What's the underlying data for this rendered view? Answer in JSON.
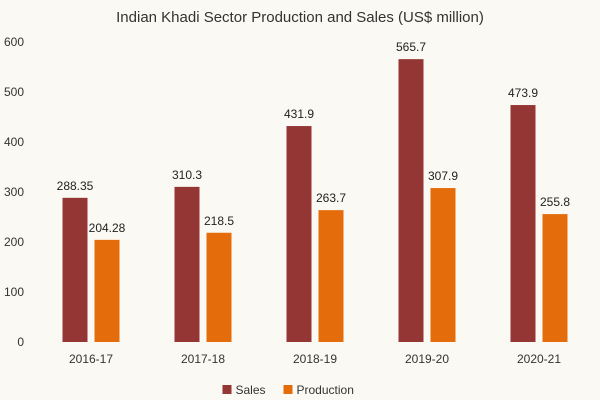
{
  "chart_data": {
    "type": "bar",
    "title": "Indian Khadi Sector Production and Sales (US$ million)",
    "xlabel": "",
    "ylabel": "",
    "categories": [
      "2016-17",
      "2017-18",
      "2018-19",
      "2019-20",
      "2020-21"
    ],
    "series": [
      {
        "name": "Sales",
        "color": "#943634",
        "values": [
          288.35,
          310.3,
          431.9,
          565.7,
          473.9
        ],
        "labels": [
          "288.35",
          "310.3",
          "431.9",
          "565.7",
          "473.9"
        ]
      },
      {
        "name": "Production",
        "color": "#e46c0a",
        "values": [
          204.28,
          218.5,
          263.7,
          307.9,
          255.8
        ],
        "labels": [
          "204.28",
          "218.5",
          "263.7",
          "307.9",
          "255.8"
        ]
      }
    ],
    "ylim": [
      0,
      600
    ],
    "yticks": [
      0,
      100,
      200,
      300,
      400,
      500,
      600
    ],
    "grid": false,
    "legend_position": "bottom-center"
  }
}
